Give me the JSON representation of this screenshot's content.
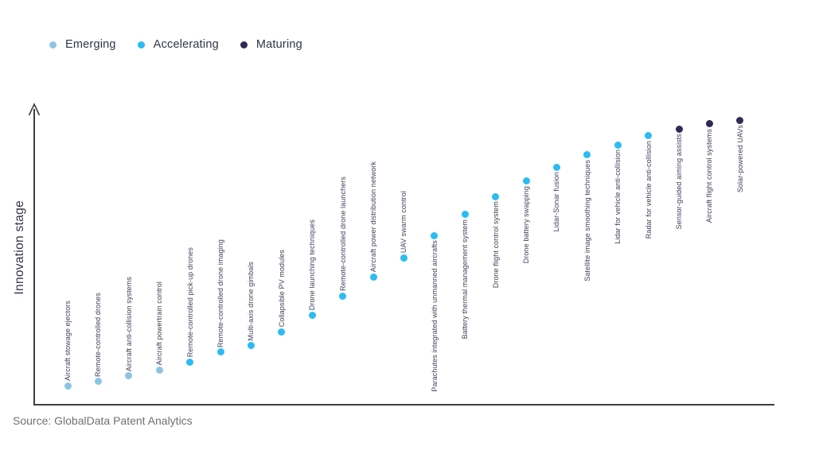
{
  "legend": {
    "items": [
      {
        "label": "Emerging",
        "stage": "emerging"
      },
      {
        "label": "Accelerating",
        "stage": "accelerating"
      },
      {
        "label": "Maturing",
        "stage": "maturing"
      }
    ]
  },
  "colors": {
    "emerging": "#8EC4E3",
    "accelerating": "#2BBCF2",
    "maturing": "#2D2A55",
    "axis": "#3F3F3F"
  },
  "source": {
    "text": "Source: GlobalData Patent Analytics"
  },
  "chart_data": {
    "type": "scatter",
    "title": "",
    "xlabel": "",
    "ylabel": "Innovation stage",
    "x_axis": "technologies (ordinal, evenly spaced, unlabeled axis)",
    "y_axis": "innovation stage (qualitative, relative 0-100 scale, arrow axis, no ticks)",
    "grid": false,
    "legend_position": "top-left",
    "legend_entries": [
      "Emerging",
      "Accelerating",
      "Maturing"
    ],
    "points": [
      {
        "label": "Aircraft stowage ejectors",
        "stage": "Emerging",
        "y": 6.5
      },
      {
        "label": "Remote-controlled drones",
        "stage": "Emerging",
        "y": 7.9
      },
      {
        "label": "Aircraft anti-collision systems",
        "stage": "Emerging",
        "y": 9.8
      },
      {
        "label": "Aircraft powertrain control",
        "stage": "Emerging",
        "y": 11.9
      },
      {
        "label": "Remote-controlled pick-up drones",
        "stage": "Accelerating",
        "y": 14.6
      },
      {
        "label": "Remote-controlled drone imaging",
        "stage": "Accelerating",
        "y": 17.9
      },
      {
        "label": "Multi-axis drone gimbals",
        "stage": "Accelerating",
        "y": 20.3
      },
      {
        "label": "Collapsible PV modules",
        "stage": "Accelerating",
        "y": 24.9
      },
      {
        "label": "Drone launching techniques",
        "stage": "Accelerating",
        "y": 30.6
      },
      {
        "label": "Remote-controlled drone launchers",
        "stage": "Accelerating",
        "y": 37.1
      },
      {
        "label": "Aircraft power distribution network",
        "stage": "Accelerating",
        "y": 43.6
      },
      {
        "label": "UAV swarm control",
        "stage": "Accelerating",
        "y": 50.1
      },
      {
        "label": "Parachutes integrated with unmanned aircrafts",
        "stage": "Accelerating",
        "y": 57.7
      },
      {
        "label": "Battery thermal management system",
        "stage": "Accelerating",
        "y": 64.8
      },
      {
        "label": "Drone flight control system",
        "stage": "Accelerating",
        "y": 71.0
      },
      {
        "label": "Drone battery swapping",
        "stage": "Accelerating",
        "y": 76.2
      },
      {
        "label": "Lidar-Sonar fusion",
        "stage": "Accelerating",
        "y": 81.0
      },
      {
        "label": "Satellite image smoothing techniques",
        "stage": "Accelerating",
        "y": 85.1
      },
      {
        "label": "Lidar for vehicle anti-collision",
        "stage": "Accelerating",
        "y": 88.6
      },
      {
        "label": "Radar for vehicle anti-collision",
        "stage": "Accelerating",
        "y": 91.6
      },
      {
        "label": "Sensor-guided aiming assists",
        "stage": "Maturing",
        "y": 94.0
      },
      {
        "label": "Aircraft flight control systems",
        "stage": "Maturing",
        "y": 95.7
      },
      {
        "label": "Solar-powered UAVs",
        "stage": "Maturing",
        "y": 97.0
      }
    ]
  }
}
